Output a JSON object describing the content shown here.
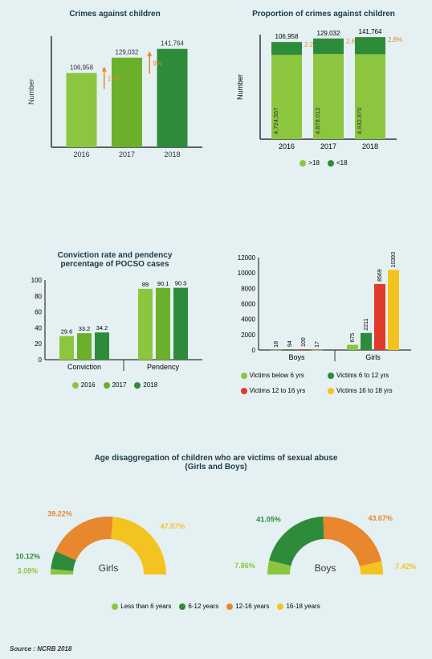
{
  "colors": {
    "light_green": "#8cc63f",
    "mid_green": "#6ab02a",
    "dark_green": "#2e8b3a",
    "red": "#e03a2a",
    "orange": "#e8872d",
    "yellow": "#f3c41f",
    "axis": "#333333",
    "bg": "#e5f0f3"
  },
  "chart1": {
    "type": "bar",
    "title": "Crimes against children",
    "ylabel": "Number",
    "categories": [
      "2016",
      "2017",
      "2018"
    ],
    "values": [
      106958,
      129032,
      141764
    ],
    "value_labels": [
      "106,958",
      "129,032",
      "141,764"
    ],
    "bar_colors": [
      "#8cc63f",
      "#6ab02a",
      "#2e8b3a"
    ],
    "arrows": [
      {
        "between": [
          0,
          1
        ],
        "label": "17%",
        "color": "#e8872d"
      },
      {
        "between": [
          1,
          2
        ],
        "label": "9%",
        "color": "#e8872d"
      }
    ],
    "ymax": 160000
  },
  "chart2": {
    "type": "stacked-bar",
    "title": "Proportion of crimes against children",
    "ylabel": "Number",
    "categories": [
      "2016",
      "2017",
      "2018"
    ],
    "over18": [
      4724557,
      4878012,
      4932870
    ],
    "under18": [
      106958,
      129032,
      141764
    ],
    "under18_labels": [
      "106,958",
      "129,032",
      "141,764"
    ],
    "over18_labels": [
      "4,724,557",
      "4,878,012",
      "4,932,870"
    ],
    "pct_labels": [
      "2.2%",
      "2.6%",
      "2.8%"
    ],
    "over18_color": "#8cc63f",
    "under18_color": "#2e8b3a",
    "pct_color": "#e8872d",
    "ymax": 5200000,
    "legend": [
      {
        "label": ">18",
        "color": "#8cc63f"
      },
      {
        "label": "<18",
        "color": "#2e8b3a"
      }
    ]
  },
  "chart3": {
    "type": "grouped-bar",
    "title": "Conviction rate and pendency\npercentage of POCSO cases",
    "groups": [
      "Conviction",
      "Pendency"
    ],
    "series": [
      {
        "name": "2016",
        "color": "#8cc63f",
        "values": [
          29.6,
          89
        ]
      },
      {
        "name": "2017",
        "color": "#6ab02a",
        "values": [
          33.2,
          90.1
        ]
      },
      {
        "name": "2018",
        "color": "#2e8b3a",
        "values": [
          34.2,
          90.3
        ]
      }
    ],
    "ymax": 100,
    "ytick_step": 20
  },
  "chart4": {
    "type": "grouped-bar",
    "groups": [
      "Boys",
      "Girls"
    ],
    "series": [
      {
        "name": "Victims below 6 yrs",
        "color": "#8cc63f",
        "values": [
          18,
          675
        ]
      },
      {
        "name": "Victims 6 to 12 yrs",
        "color": "#2e8b3a",
        "values": [
          94,
          2211
        ]
      },
      {
        "name": "Victims 12 to 16 yrs",
        "color": "#e03a2a",
        "values": [
          100,
          8569
        ]
      },
      {
        "name": "Victims 16 to 18 yrs",
        "color": "#f3c41f",
        "values": [
          17,
          10393
        ]
      }
    ],
    "ymax": 12000,
    "ytick_step": 2000
  },
  "chart5": {
    "type": "half-donut-pair",
    "title": "Age disaggregation of children who are victims of sexual abuse\n(Girls and Boys)",
    "panels": [
      {
        "label": "Girls",
        "slices": [
          {
            "name": "Less than 6 years",
            "color": "#8cc63f",
            "pct": 3.09
          },
          {
            "name": "6-12 years",
            "color": "#2e8b3a",
            "pct": 10.12
          },
          {
            "name": "12-16 years",
            "color": "#e8872d",
            "pct": 39.22
          },
          {
            "name": "16-18 years",
            "color": "#f3c41f",
            "pct": 47.57
          }
        ]
      },
      {
        "label": "Boys",
        "slices": [
          {
            "name": "Less than 6 years",
            "color": "#8cc63f",
            "pct": 7.86
          },
          {
            "name": "6-12 years",
            "color": "#2e8b3a",
            "pct": 41.05
          },
          {
            "name": "12-16 years",
            "color": "#e8872d",
            "pct": 43.67
          },
          {
            "name": "16-18 years",
            "color": "#f3c41f",
            "pct": 7.42
          }
        ]
      }
    ],
    "legend": [
      {
        "label": "Less than 6 years",
        "color": "#8cc63f"
      },
      {
        "label": "6-12 years",
        "color": "#2e8b3a"
      },
      {
        "label": "12-16 years",
        "color": "#e8872d"
      },
      {
        "label": "16-18 years",
        "color": "#f3c41f"
      }
    ]
  },
  "source": "Source : NCRB 2018"
}
